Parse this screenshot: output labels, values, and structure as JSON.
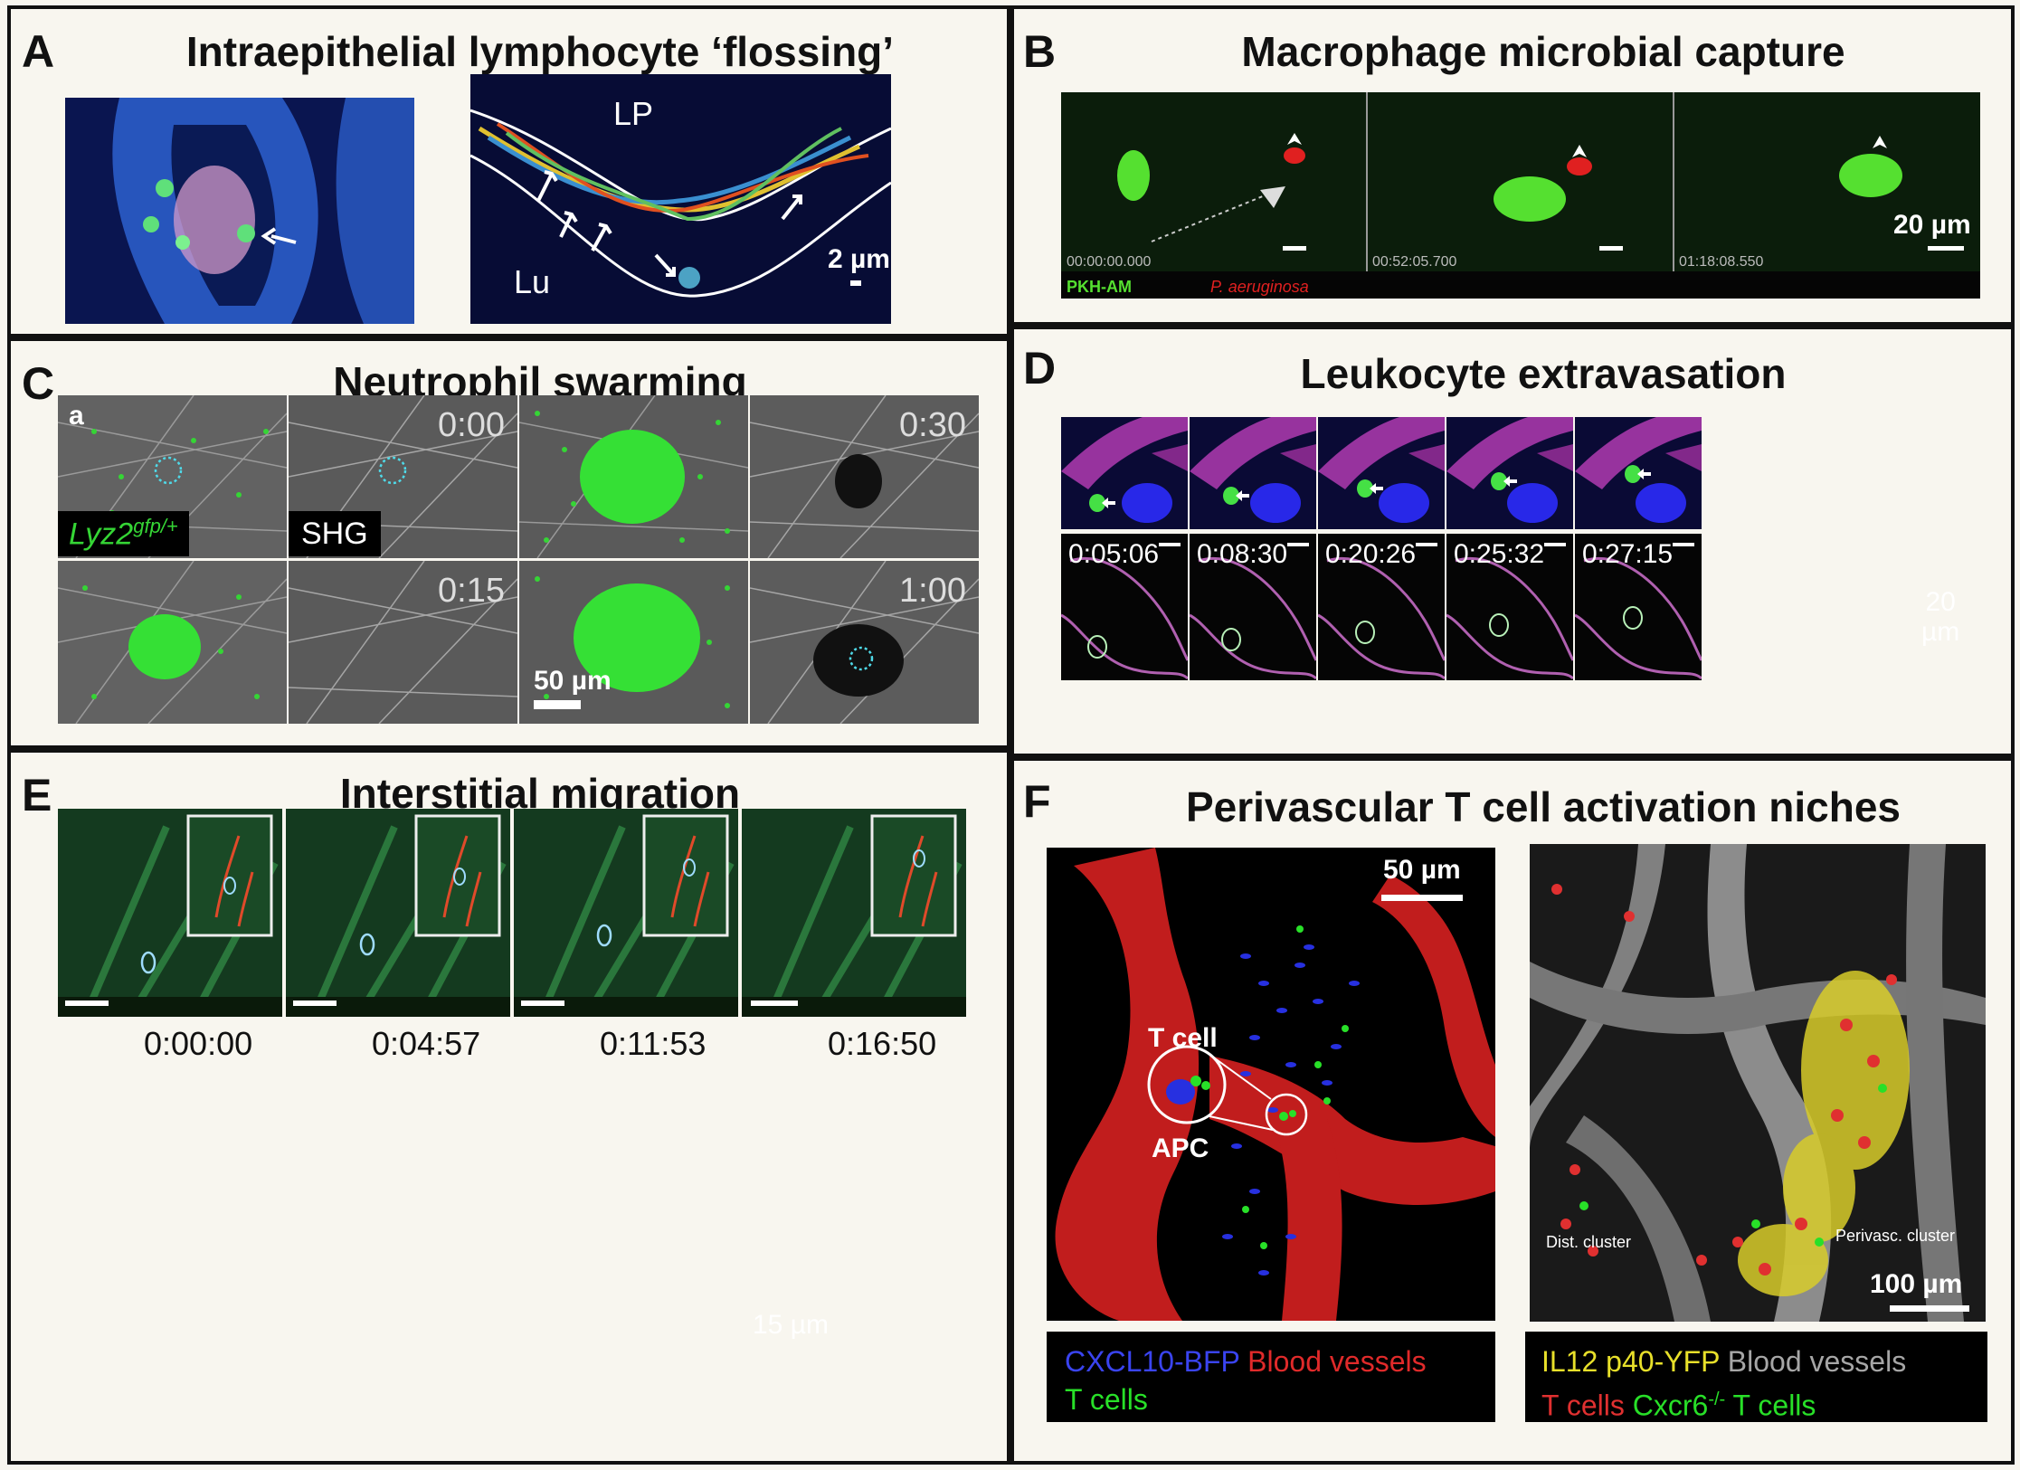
{
  "panels": {
    "A": {
      "letter": "A",
      "title": "Intraepithelial lymphocyte ‘flossing’",
      "label_lp": "LP",
      "label_lu": "Lu",
      "scale": "2 µm"
    },
    "B": {
      "letter": "B",
      "title": "Macrophage microbial capture",
      "timestamps": [
        "00:00:00.000",
        "00:52:05.700",
        "01:18:08.550"
      ],
      "scale": "20 µm",
      "legend_green": "PKH-AM",
      "legend_red": "P. aeruginosa"
    },
    "C": {
      "letter": "C",
      "title": "Neutrophil swarming",
      "corner_label": "a",
      "times": [
        "0:00",
        "0:30",
        "0:15",
        "1:00"
      ],
      "label_lyz2_main": "Lyz2",
      "label_lyz2_sup": "gfp/+",
      "label_shg": "SHG",
      "scale": "50 µm"
    },
    "D": {
      "letter": "D",
      "title": "Leukocyte extravasation",
      "times": [
        "0:05:06",
        "0:08:30",
        "0:20:26",
        "0:25:32",
        "0:27:15"
      ],
      "scale_line1": "20",
      "scale_line2": "µm"
    },
    "E": {
      "letter": "E",
      "title": "Interstitial migration",
      "times": [
        "0:00:00",
        "0:04:57",
        "0:11:53",
        "0:16:50"
      ],
      "scale": "15 µm"
    },
    "F": {
      "letter": "F",
      "title": "Perivascular T cell activation niches",
      "scale_left": "50 µm",
      "label_tcell": "T cell",
      "label_apc": "APC",
      "scale_right": "100 µm",
      "label_dist": "Dist. cluster",
      "label_perivasc": "Perivasc. cluster",
      "legend_left": [
        "CXCL10-BFP",
        "Blood vessels",
        "T cells"
      ],
      "legend_right": [
        "IL12 p40-YFP",
        "Blood vessels",
        "T cells",
        "Cxcr6",
        "-/-",
        "T cells"
      ]
    }
  }
}
